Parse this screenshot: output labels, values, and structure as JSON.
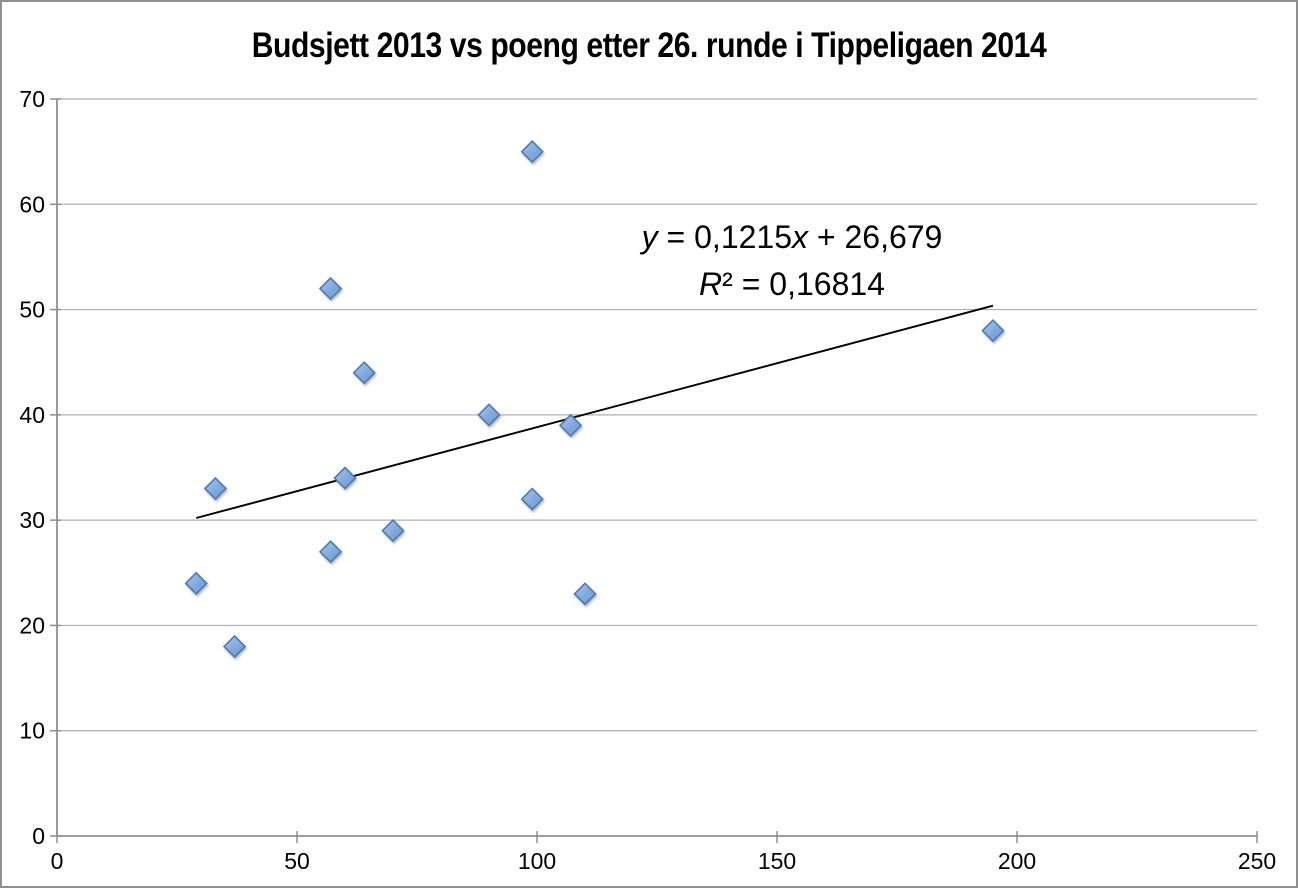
{
  "chart_data": {
    "type": "scatter",
    "title": "Budsjett 2013 vs poeng etter 26. runde i Tippeligaen 2014",
    "xlabel": "",
    "ylabel": "",
    "xlim": [
      0,
      250
    ],
    "ylim": [
      0,
      70
    ],
    "x_ticks": [
      0,
      50,
      100,
      150,
      200,
      250
    ],
    "y_ticks": [
      0,
      10,
      20,
      30,
      40,
      50,
      60,
      70
    ],
    "grid": "horizontal-only",
    "legend": "none",
    "points": [
      {
        "x": 99,
        "y": 65
      },
      {
        "x": 57,
        "y": 52
      },
      {
        "x": 195,
        "y": 48
      },
      {
        "x": 64,
        "y": 44
      },
      {
        "x": 90,
        "y": 40
      },
      {
        "x": 107,
        "y": 39
      },
      {
        "x": 60,
        "y": 34
      },
      {
        "x": 33,
        "y": 33
      },
      {
        "x": 99,
        "y": 32
      },
      {
        "x": 70,
        "y": 29
      },
      {
        "x": 57,
        "y": 27
      },
      {
        "x": 29,
        "y": 24
      },
      {
        "x": 110,
        "y": 23
      },
      {
        "x": 37,
        "y": 18
      }
    ],
    "trendline": {
      "slope": 0.1215,
      "intercept": 26.679,
      "x_start": 29,
      "x_end": 195
    },
    "equation": {
      "line1_segments": [
        {
          "text": "y",
          "italic": true
        },
        {
          "text": " = 0,1215",
          "italic": false
        },
        {
          "text": "x",
          "italic": true
        },
        {
          "text": " + 26,679",
          "italic": false
        }
      ],
      "line2_segments": [
        {
          "text": "R",
          "italic": true
        },
        {
          "text": "² = 0,16814",
          "italic": false
        }
      ]
    },
    "colors": {
      "marker_fill_light": "#A9C7EC",
      "marker_fill": "#7FA9DC",
      "marker_fill_dark": "#6E99D1",
      "marker_stroke": "#4E79B4",
      "gridline": "#AFAFAF",
      "axis": "#8F8F8F",
      "trendline": "#000000",
      "text": "#000000",
      "background": "#FFFFFF"
    }
  }
}
